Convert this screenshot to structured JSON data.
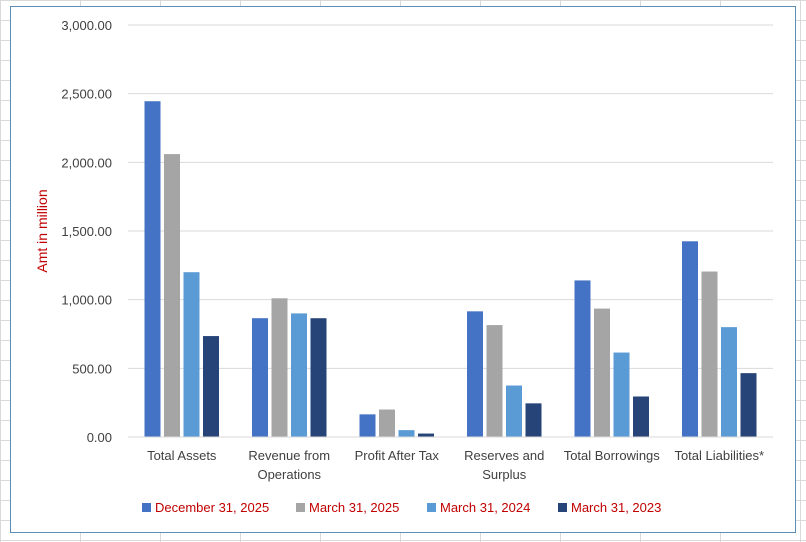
{
  "chart_data": {
    "type": "bar",
    "title": "",
    "xlabel": "",
    "ylabel": "Amt in million",
    "ylim": [
      0,
      3000
    ],
    "yticks": [
      "0.00",
      "500.00",
      "1,000.00",
      "1,500.00",
      "2,000.00",
      "2,500.00",
      "3,000.00"
    ],
    "ytick_values": [
      0,
      500,
      1000,
      1500,
      2000,
      2500,
      3000
    ],
    "grid": true,
    "legend_position": "bottom",
    "categories": [
      [
        "Total Assets"
      ],
      [
        "Revenue from",
        "Operations"
      ],
      [
        "Profit After Tax"
      ],
      [
        "Reserves and",
        "Surplus"
      ],
      [
        "Total Borrowings"
      ],
      [
        "Total Liabilities*"
      ]
    ],
    "series": [
      {
        "name": "December 31, 2025",
        "color": "#4472c4",
        "values": [
          2445,
          865,
          165,
          915,
          1140,
          1425
        ]
      },
      {
        "name": "March 31, 2025",
        "color": "#a5a5a5",
        "values": [
          2060,
          1010,
          200,
          815,
          935,
          1205
        ]
      },
      {
        "name": "March 31, 2024",
        "color": "#5b9bd5",
        "values": [
          1200,
          900,
          50,
          375,
          615,
          800
        ]
      },
      {
        "name": "March 31, 2023",
        "color": "#264478",
        "values": [
          735,
          865,
          25,
          245,
          295,
          465
        ]
      }
    ],
    "label_color": "#c00000",
    "gridline_color": "#d9d9d9",
    "axis_color": "#d9d9d9"
  }
}
